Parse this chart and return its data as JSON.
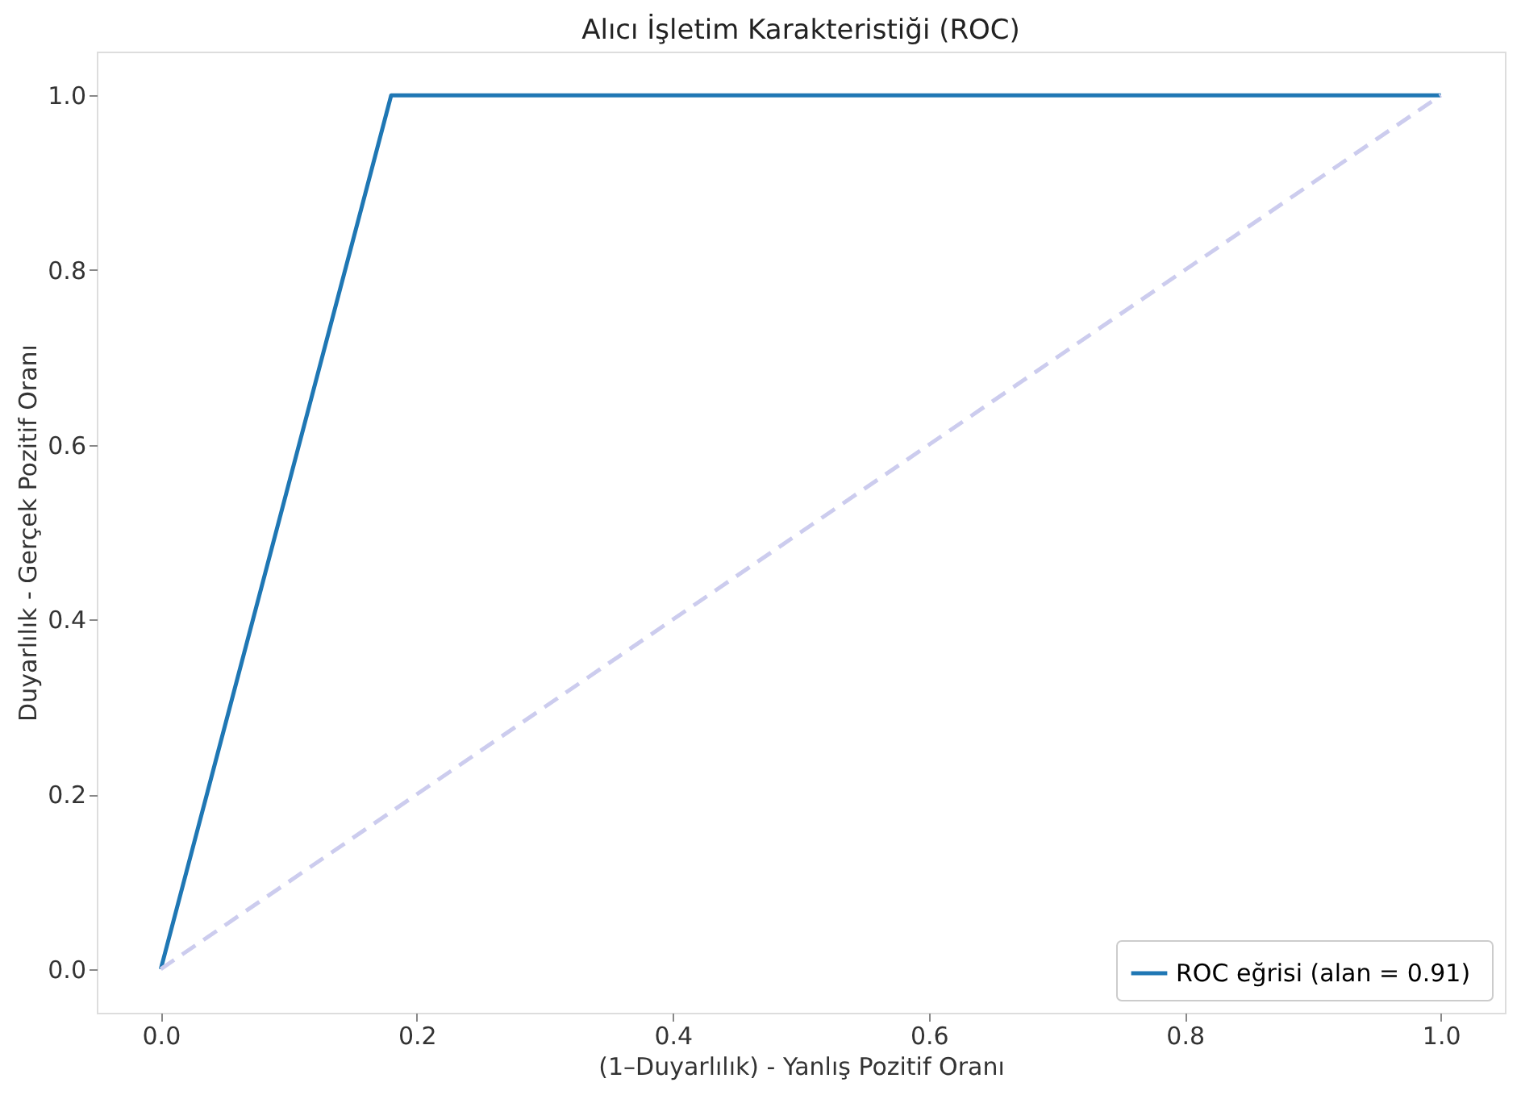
{
  "chart_data": {
    "type": "line",
    "title": "Alıcı İşletim Karakteristiği (ROC)",
    "xlabel": "(1–Duyarlılık) - Yanlış Pozitif Oranı",
    "ylabel": "Duyarlılık - Gerçek Pozitif Oranı",
    "series": [
      {
        "name": "ROC eğrisi (alan =  0.91)",
        "color": "#1f77b4",
        "x": [
          0,
          0.18,
          1
        ],
        "values": [
          0,
          1,
          1
        ],
        "line_style": "solid"
      },
      {
        "color": "#ccccee",
        "x": [
          0,
          1
        ],
        "values": [
          0,
          1
        ],
        "line_style": "dashed"
      }
    ],
    "xlim": [
      -0.05,
      1.05
    ],
    "ylim": [
      -0.05,
      1.05
    ],
    "xticks": [
      {
        "value": 0,
        "label": "0.0"
      },
      {
        "value": 0.2,
        "label": "0.2"
      },
      {
        "value": 0.4,
        "label": "0.4"
      },
      {
        "value": 0.6,
        "label": "0.6"
      },
      {
        "value": 0.8,
        "label": "0.8"
      },
      {
        "value": 1,
        "label": "1.0"
      }
    ],
    "yticks": [
      {
        "value": 0,
        "label": "0.0"
      },
      {
        "value": 0.2,
        "label": "0.2"
      },
      {
        "value": 0.4,
        "label": "0.4"
      },
      {
        "value": 0.6,
        "label": "0.6"
      },
      {
        "value": 0.8,
        "label": "0.8"
      },
      {
        "value": 1,
        "label": "1.0"
      }
    ],
    "grid": false,
    "legend": "bottom right",
    "marker": "none"
  }
}
